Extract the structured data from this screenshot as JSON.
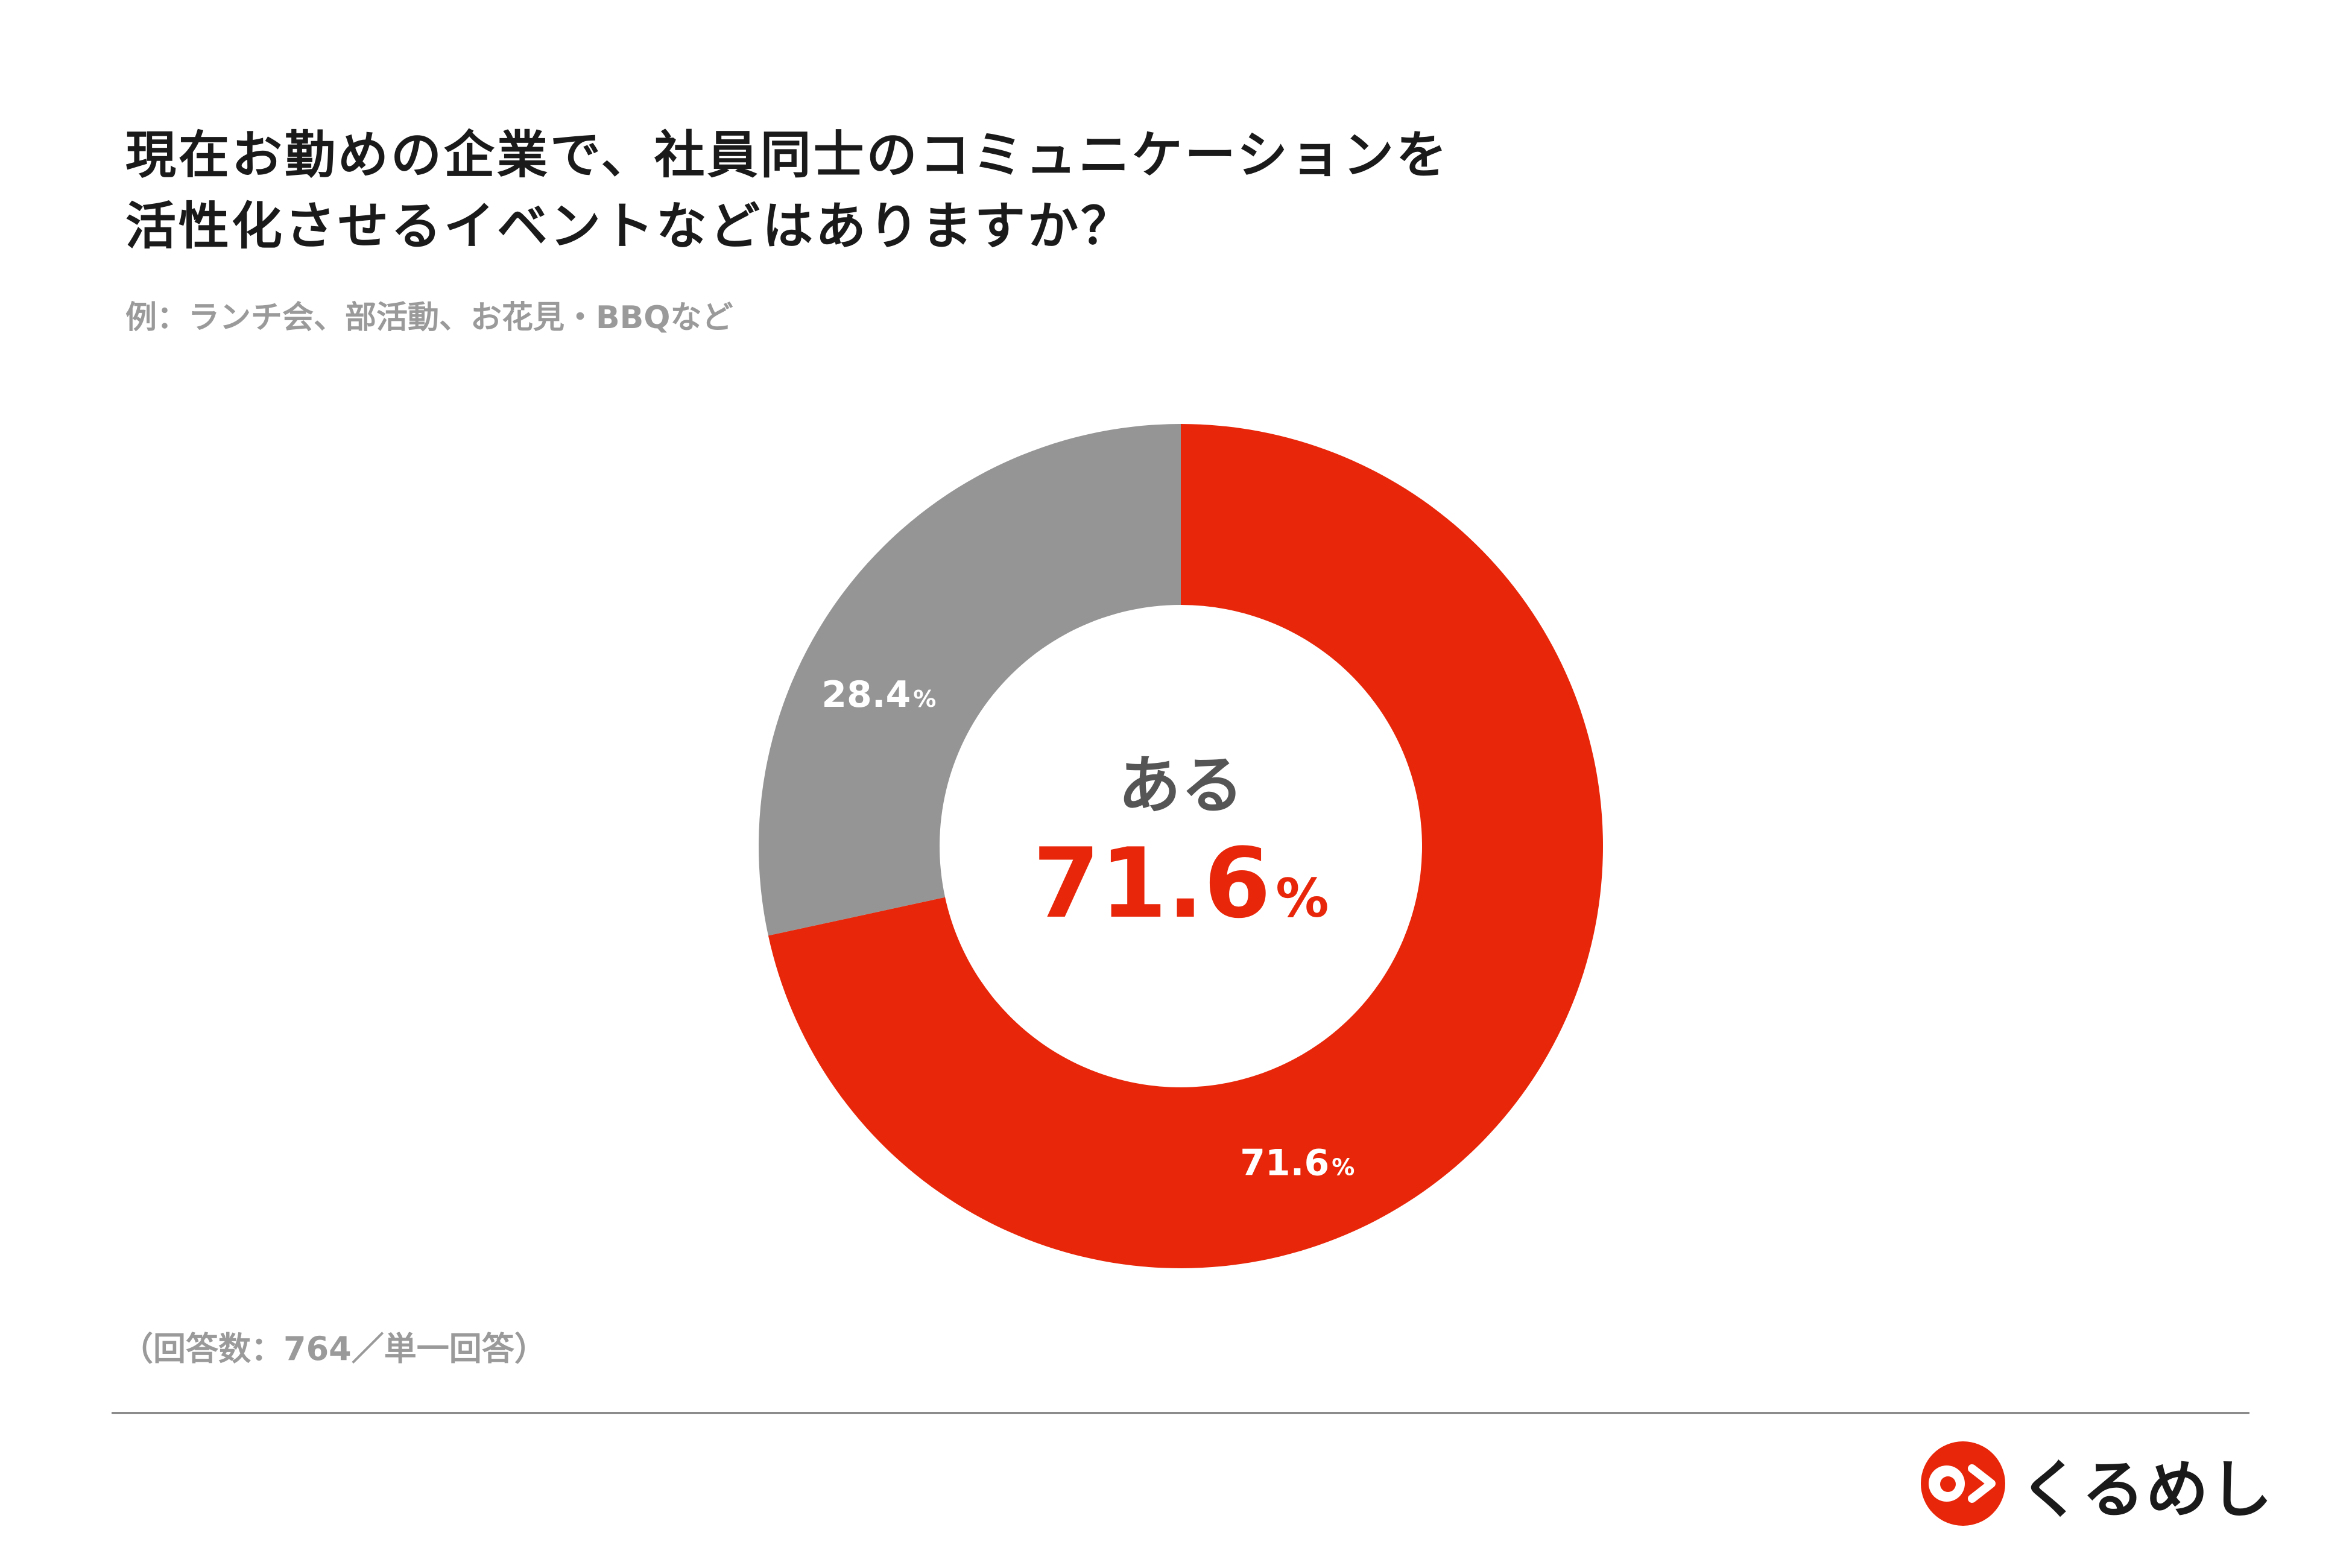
{
  "title_line1": "現在お勤めの企業で、社員同士のコミュニケーションを",
  "title_line2": "活性化させるイベントなどはありますか？",
  "subtitle": "例：ランチ会、部活動、お花見・BBQなど",
  "note": "（回答数：764／単一回答）",
  "brand": {
    "name": "くるめし",
    "color": "#e8270a"
  },
  "colors": {
    "accent": "#e8270a",
    "secondary": "#959595",
    "text": "#1a1a1a",
    "muted": "#9a9a9a"
  },
  "chart_data": {
    "type": "pie",
    "donut": true,
    "categories": [
      "ある",
      ""
    ],
    "values": [
      71.6,
      28.4
    ],
    "unit": "%",
    "center_label": "ある",
    "center_value": "71.6",
    "center_unit": "%",
    "slice_labels": [
      {
        "value": "71.6",
        "unit": "%"
      },
      {
        "value": "28.4",
        "unit": "%"
      }
    ],
    "colors": [
      "#e8270a",
      "#959595"
    ]
  }
}
